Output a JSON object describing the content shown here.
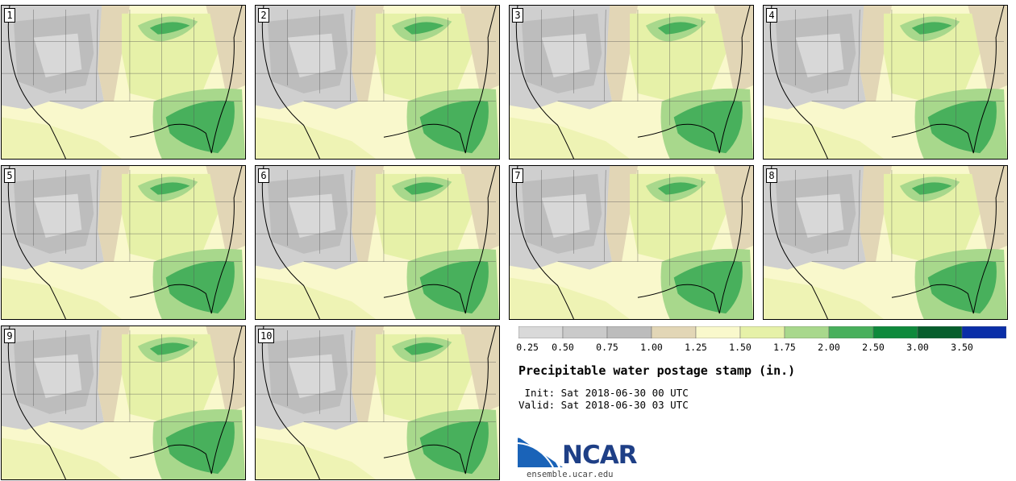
{
  "panels": [
    {
      "label": "1"
    },
    {
      "label": "2"
    },
    {
      "label": "3"
    },
    {
      "label": "4"
    },
    {
      "label": "5"
    },
    {
      "label": "6"
    },
    {
      "label": "7"
    },
    {
      "label": "8"
    },
    {
      "label": "9"
    },
    {
      "label": "10"
    }
  ],
  "legend": {
    "ticks": [
      "0.25",
      "0.50",
      "0.75",
      "1.00",
      "1.25",
      "1.50",
      "1.75",
      "2.00",
      "2.50",
      "3.00",
      "3.50"
    ],
    "colors": [
      "#d9d9d9",
      "#cacaca",
      "#bcbcbc",
      "#e2d6b6",
      "#f9f8cc",
      "#e6f1a8",
      "#a8d88c",
      "#48b05c",
      "#0e8a3c",
      "#065e2c",
      "#0a2ea8"
    ]
  },
  "title": "Precipitable water postage stamp (in.)",
  "init": " Init: Sat 2018-06-30 00 UTC",
  "valid": "Valid: Sat 2018-06-30 03 UTC",
  "logo": {
    "text": "NCAR",
    "site": "ensemble.ucar.edu"
  }
}
